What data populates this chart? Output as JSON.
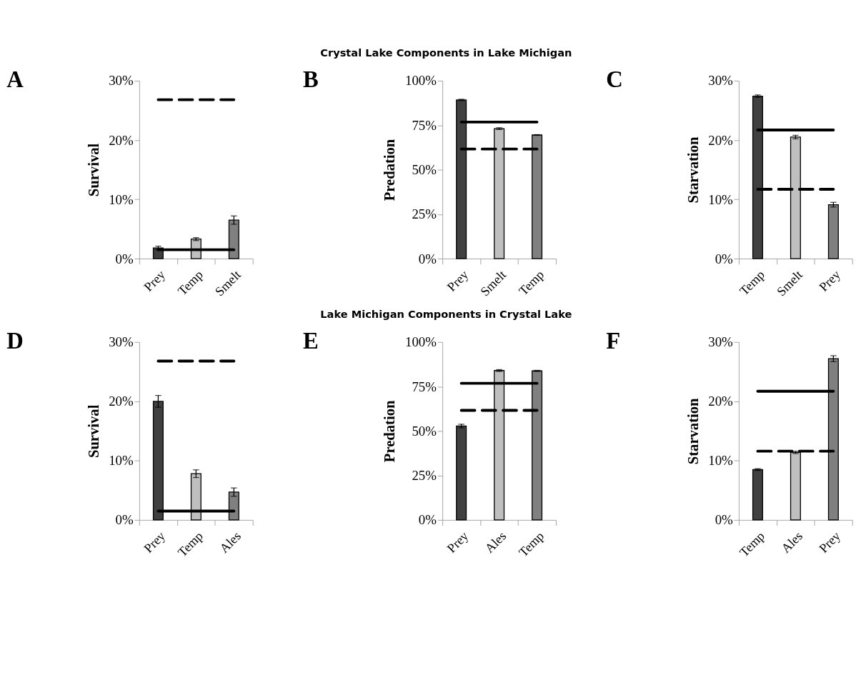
{
  "chart_data": [
    {
      "type": "bar",
      "title": "A",
      "annotations": [
        "Crystal Lake Components in Lake Michigan"
      ],
      "ylabel": "Survival",
      "categories": [
        "Prey",
        "Temp",
        "Smelt"
      ],
      "values": [
        1.8,
        3.3,
        6.5
      ],
      "errors": [
        0.3,
        0.25,
        0.7
      ],
      "colors": [
        "#404040",
        "#bfbfbf",
        "#808080"
      ],
      "ylim": [
        0,
        30
      ],
      "yticks": [
        {
          "value": 0,
          "label": "0%"
        },
        {
          "value": 10,
          "label": "10%"
        },
        {
          "value": 20,
          "label": "20%"
        },
        {
          "value": 30,
          "label": "30%"
        }
      ],
      "ref_lines": [
        {
          "axis": "y",
          "value": 1.5,
          "line_style": "solid"
        },
        {
          "axis": "y",
          "value": 26.8,
          "line_style": "dashed"
        }
      ]
    },
    {
      "type": "bar",
      "title": "B",
      "ylabel": "Predation",
      "categories": [
        "Prey",
        "Smelt",
        "Temp"
      ],
      "values": [
        89.2,
        73.1,
        69.5
      ],
      "errors": [
        0.4,
        0.5,
        0.2
      ],
      "colors": [
        "#404040",
        "#bfbfbf",
        "#808080"
      ],
      "ylim": [
        0,
        100
      ],
      "yticks": [
        {
          "value": 0,
          "label": "0%"
        },
        {
          "value": 25,
          "label": "25%"
        },
        {
          "value": 50,
          "label": "50%"
        },
        {
          "value": 75,
          "label": "75%"
        },
        {
          "value": 100,
          "label": "100%"
        }
      ],
      "ref_lines": [
        {
          "axis": "y",
          "value": 76.8,
          "line_style": "solid"
        },
        {
          "axis": "y",
          "value": 61.6,
          "line_style": "dashed"
        }
      ]
    },
    {
      "type": "bar",
      "title": "C",
      "ylabel": "Starvation",
      "categories": [
        "Temp",
        "Smelt",
        "Prey"
      ],
      "values": [
        27.4,
        20.5,
        9.1
      ],
      "errors": [
        0.2,
        0.3,
        0.4
      ],
      "colors": [
        "#404040",
        "#bfbfbf",
        "#808080"
      ],
      "ylim": [
        0,
        30
      ],
      "yticks": [
        {
          "value": 0,
          "label": "0%"
        },
        {
          "value": 10,
          "label": "10%"
        },
        {
          "value": 20,
          "label": "20%"
        },
        {
          "value": 30,
          "label": "30%"
        }
      ],
      "ref_lines": [
        {
          "axis": "y",
          "value": 21.7,
          "line_style": "solid"
        },
        {
          "axis": "y",
          "value": 11.7,
          "line_style": "dashed"
        }
      ]
    },
    {
      "type": "bar",
      "title": "D",
      "annotations": [
        "Lake Michigan Components in Crystal Lake"
      ],
      "ylabel": "Survival",
      "categories": [
        "Prey",
        "Temp",
        "Ales"
      ],
      "values": [
        20.0,
        7.8,
        4.7
      ],
      "errors": [
        1.0,
        0.65,
        0.7
      ],
      "colors": [
        "#404040",
        "#bfbfbf",
        "#808080"
      ],
      "ylim": [
        0,
        30
      ],
      "yticks": [
        {
          "value": 0,
          "label": "0%"
        },
        {
          "value": 10,
          "label": "10%"
        },
        {
          "value": 20,
          "label": "20%"
        },
        {
          "value": 30,
          "label": "30%"
        }
      ],
      "ref_lines": [
        {
          "axis": "y",
          "value": 1.5,
          "line_style": "solid"
        },
        {
          "axis": "y",
          "value": 26.8,
          "line_style": "dashed"
        }
      ]
    },
    {
      "type": "bar",
      "title": "E",
      "ylabel": "Predation",
      "categories": [
        "Prey",
        "Ales",
        "Temp"
      ],
      "values": [
        52.8,
        84.0,
        83.8
      ],
      "errors": [
        1.0,
        0.5,
        0.3
      ],
      "colors": [
        "#404040",
        "#bfbfbf",
        "#808080"
      ],
      "ylim": [
        0,
        100
      ],
      "yticks": [
        {
          "value": 0,
          "label": "0%"
        },
        {
          "value": 25,
          "label": "25%"
        },
        {
          "value": 50,
          "label": "50%"
        },
        {
          "value": 75,
          "label": "75%"
        },
        {
          "value": 100,
          "label": "100%"
        }
      ],
      "ref_lines": [
        {
          "axis": "y",
          "value": 76.8,
          "line_style": "solid"
        },
        {
          "axis": "y",
          "value": 61.6,
          "line_style": "dashed"
        }
      ]
    },
    {
      "type": "bar",
      "title": "F",
      "ylabel": "Starvation",
      "categories": [
        "Temp",
        "Ales",
        "Prey"
      ],
      "values": [
        8.5,
        11.4,
        27.2
      ],
      "errors": [
        0.15,
        0.2,
        0.5
      ],
      "colors": [
        "#404040",
        "#bfbfbf",
        "#808080"
      ],
      "ylim": [
        0,
        30
      ],
      "yticks": [
        {
          "value": 0,
          "label": "0%"
        },
        {
          "value": 10,
          "label": "10%"
        },
        {
          "value": 20,
          "label": "20%"
        },
        {
          "value": 30,
          "label": "30%"
        }
      ],
      "ref_lines": [
        {
          "axis": "y",
          "value": 21.7,
          "line_style": "solid"
        },
        {
          "axis": "y",
          "value": 11.6,
          "line_style": "dashed"
        }
      ]
    }
  ]
}
